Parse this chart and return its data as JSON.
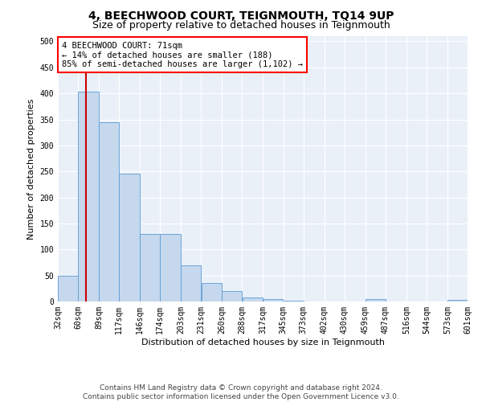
{
  "title": "4, BEECHWOOD COURT, TEIGNMOUTH, TQ14 9UP",
  "subtitle": "Size of property relative to detached houses in Teignmouth",
  "xlabel": "Distribution of detached houses by size in Teignmouth",
  "ylabel": "Number of detached properties",
  "footer_line1": "Contains HM Land Registry data © Crown copyright and database right 2024.",
  "footer_line2": "Contains public sector information licensed under the Open Government Licence v3.0.",
  "annotation_line1": "4 BEECHWOOD COURT: 71sqm",
  "annotation_line2": "← 14% of detached houses are smaller (188)",
  "annotation_line3": "85% of semi-detached houses are larger (1,102) →",
  "bar_edges": [
    32,
    60,
    89,
    117,
    146,
    174,
    203,
    231,
    260,
    288,
    317,
    345,
    373,
    402,
    430,
    459,
    487,
    516,
    544,
    573,
    601
  ],
  "bar_heights": [
    50,
    403,
    344,
    246,
    130,
    130,
    70,
    36,
    20,
    7,
    5,
    1,
    0,
    0,
    0,
    5,
    0,
    0,
    0,
    3
  ],
  "bar_color": "#c5d8ed",
  "bar_edge_color": "#5b9bd5",
  "vline_color": "#cc0000",
  "vline_x": 71,
  "ylim": [
    0,
    510
  ],
  "yticks": [
    0,
    50,
    100,
    150,
    200,
    250,
    300,
    350,
    400,
    450,
    500
  ],
  "bg_color": "#ffffff",
  "plot_bg_color": "#eaf0f8",
  "grid_color": "#ffffff",
  "title_fontsize": 10,
  "subtitle_fontsize": 9,
  "annotation_fontsize": 7.5,
  "axis_label_fontsize": 8,
  "tick_fontsize": 7,
  "footer_fontsize": 6.5
}
